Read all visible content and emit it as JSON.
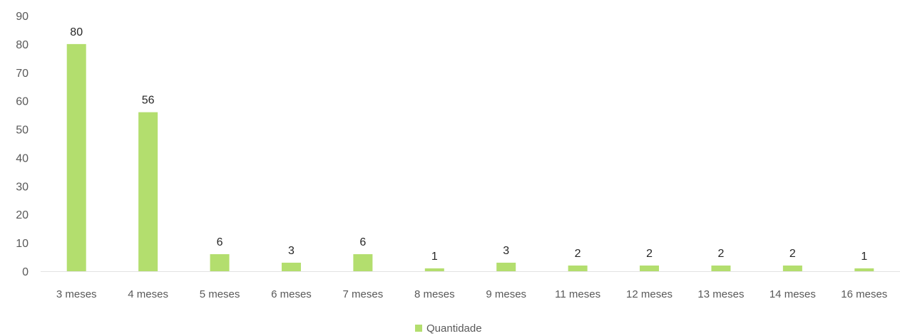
{
  "chart_data": {
    "type": "bar",
    "categories": [
      "3 meses",
      "4 meses",
      "5 meses",
      "6 meses",
      "7 meses",
      "8 meses",
      "9 meses",
      "11 meses",
      "12 meses",
      "13 meses",
      "14 meses",
      "16 meses"
    ],
    "series": [
      {
        "name": "Quantidade",
        "values": [
          80,
          56,
          6,
          3,
          6,
          1,
          3,
          2,
          2,
          2,
          2,
          1
        ]
      }
    ],
    "data_labels": [
      "80",
      "56",
      "6",
      "3",
      "6",
      "1",
      "3",
      "2",
      "2",
      "2",
      "2",
      "1"
    ],
    "ylim": [
      0,
      90
    ],
    "yticks": [
      0,
      10,
      20,
      30,
      40,
      50,
      60,
      70,
      80,
      90
    ],
    "title": "",
    "xlabel": "",
    "ylabel": "",
    "grid": false,
    "legend_position": "bottom",
    "bar_color": "#b3de6e",
    "legend": {
      "label": "Quantidade"
    }
  }
}
